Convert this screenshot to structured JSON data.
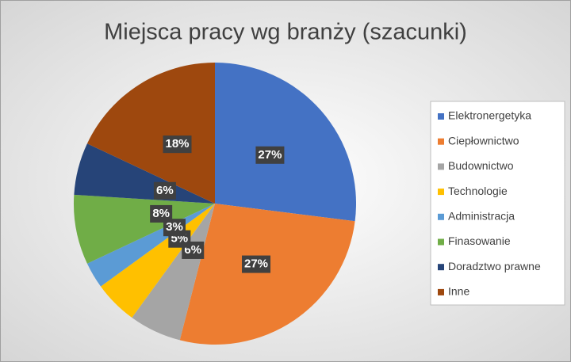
{
  "chart_data": {
    "type": "pie",
    "title": "Miejsca pracy wg branży (szacunki)",
    "categories": [
      "Elektronergetyka",
      "Ciepłownictwo",
      "Budownictwo",
      "Technologie",
      "Administracja",
      "Finasowanie",
      "Doradztwo prawne",
      "Inne"
    ],
    "values": [
      27,
      27,
      6,
      5,
      3,
      8,
      6,
      18
    ],
    "value_labels": [
      "27%",
      "27%",
      "6%",
      "5%",
      "3%",
      "8%",
      "6%",
      "18%"
    ],
    "colors": [
      "#4472c4",
      "#ed7d31",
      "#a5a5a5",
      "#ffc000",
      "#5b9bd5",
      "#70ad47",
      "#264478",
      "#9e480e"
    ],
    "legend": "right"
  }
}
